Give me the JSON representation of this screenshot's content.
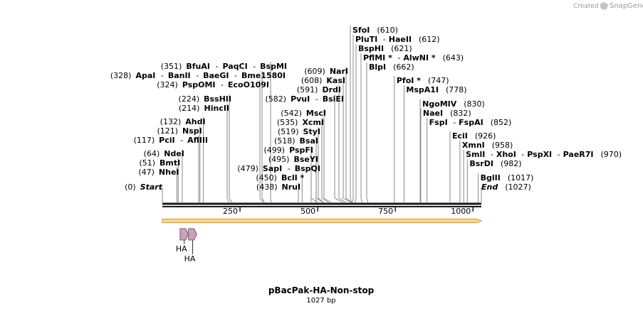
{
  "credit": {
    "prefix": "Created by",
    "brand": "SnapGene"
  },
  "plasmid": {
    "name": "pBacPak-HA-Non-stop",
    "length_label": "1027 bp",
    "length_bp": 1027
  },
  "axis": {
    "ticks": [
      {
        "value": 250,
        "label": "250"
      },
      {
        "value": 500,
        "label": "500"
      },
      {
        "value": 750,
        "label": "750"
      },
      {
        "value": 1000,
        "label": "1000"
      }
    ]
  },
  "feature_colors": {
    "backbone": "#1a1a1a",
    "orf_fill": "#f2d8a4",
    "orf_stroke": "#e2a33a",
    "tag_fill": "#c9a3b9",
    "tag_stroke": "#7f5a72",
    "leader_line": "#888888"
  },
  "features": [
    {
      "name": "HA",
      "start": 57,
      "end": 84
    },
    {
      "name": "HA",
      "start": 84,
      "end": 111
    }
  ],
  "sites": [
    {
      "site": 0,
      "pos": "(0)",
      "names": [
        {
          "t": "Start",
          "italic": true
        }
      ]
    },
    {
      "site": 47,
      "pos": "(47)",
      "names": [
        {
          "t": "NheI"
        }
      ]
    },
    {
      "site": 51,
      "pos": "(51)",
      "names": [
        {
          "t": "BmtI"
        }
      ]
    },
    {
      "site": 64,
      "pos": "(64)",
      "names": [
        {
          "t": "NdeI"
        }
      ]
    },
    {
      "site": 117,
      "pos": "(117)",
      "names": [
        {
          "t": "PciI"
        },
        {
          "t": "AflIII"
        }
      ]
    },
    {
      "site": 121,
      "pos": "(121)",
      "names": [
        {
          "t": "NspI"
        }
      ]
    },
    {
      "site": 132,
      "pos": "(132)",
      "names": [
        {
          "t": "AhdI"
        }
      ]
    },
    {
      "site": 214,
      "pos": "(214)",
      "names": [
        {
          "t": "HincII"
        }
      ]
    },
    {
      "site": 224,
      "pos": "(224)",
      "names": [
        {
          "t": "BssHII"
        }
      ]
    },
    {
      "site": 324,
      "pos": "(324)",
      "names": [
        {
          "t": "PspOMI"
        },
        {
          "t": "EcoO109I"
        }
      ]
    },
    {
      "site": 328,
      "pos": "(328)",
      "names": [
        {
          "t": "ApaI"
        },
        {
          "t": "BanII"
        },
        {
          "t": "BaeGI"
        },
        {
          "t": "Bme1580I"
        }
      ]
    },
    {
      "site": 351,
      "pos": "(351)",
      "names": [
        {
          "t": "BfuAI"
        },
        {
          "t": "PaqCI"
        },
        {
          "t": "BspMI"
        }
      ]
    },
    {
      "site": 438,
      "pos": "(438)",
      "names": [
        {
          "t": "NruI"
        }
      ]
    },
    {
      "site": 450,
      "pos": "(450)",
      "names": [
        {
          "t": "BclI *"
        }
      ]
    },
    {
      "site": 479,
      "pos": "(479)",
      "names": [
        {
          "t": "SapI"
        },
        {
          "t": "BspQI"
        }
      ]
    },
    {
      "site": 495,
      "pos": "(495)",
      "names": [
        {
          "t": "BseYI"
        }
      ]
    },
    {
      "site": 499,
      "pos": "(499)",
      "names": [
        {
          "t": "PspFI"
        }
      ]
    },
    {
      "site": 518,
      "pos": "(518)",
      "names": [
        {
          "t": "BsaI"
        }
      ]
    },
    {
      "site": 519,
      "pos": "(519)",
      "names": [
        {
          "t": "StyI"
        }
      ]
    },
    {
      "site": 535,
      "pos": "(535)",
      "names": [
        {
          "t": "XcmI"
        }
      ]
    },
    {
      "site": 542,
      "pos": "(542)",
      "names": [
        {
          "t": "MscI"
        }
      ]
    },
    {
      "site": 582,
      "pos": "(582)",
      "names": [
        {
          "t": "PvuI"
        },
        {
          "t": "BsiEI"
        }
      ]
    },
    {
      "site": 591,
      "pos": "(591)",
      "names": [
        {
          "t": "DrdI"
        }
      ]
    },
    {
      "site": 608,
      "pos": "(608)",
      "names": [
        {
          "t": "KasI"
        }
      ]
    },
    {
      "site": 609,
      "pos": "(609)",
      "names": [
        {
          "t": "NarI"
        }
      ]
    },
    {
      "site": 610,
      "pos": "(610)",
      "names": [
        {
          "t": "SfoI"
        }
      ],
      "pos_after": true
    },
    {
      "site": 612,
      "pos": "(612)",
      "names": [
        {
          "t": "PluTI"
        },
        {
          "t": "HaeII"
        }
      ],
      "pos_after": true
    },
    {
      "site": 621,
      "pos": "(621)",
      "names": [
        {
          "t": "BspHI"
        }
      ],
      "pos_after": true
    },
    {
      "site": 643,
      "pos": "(643)",
      "names": [
        {
          "t": "PflMI *"
        },
        {
          "t": "AlwNI *"
        }
      ],
      "pos_after": true
    },
    {
      "site": 662,
      "pos": "(662)",
      "names": [
        {
          "t": "BlpI"
        }
      ],
      "pos_after": true
    },
    {
      "site": 747,
      "pos": "(747)",
      "names": [
        {
          "t": "PfoI *"
        }
      ],
      "pos_after": true
    },
    {
      "site": 778,
      "pos": "(778)",
      "names": [
        {
          "t": "MspA1I"
        }
      ],
      "pos_after": true
    },
    {
      "site": 830,
      "pos": "(830)",
      "names": [
        {
          "t": "NgoMIV"
        }
      ],
      "pos_after": true
    },
    {
      "site": 832,
      "pos": "(832)",
      "names": [
        {
          "t": "NaeI"
        }
      ],
      "pos_after": true
    },
    {
      "site": 852,
      "pos": "(852)",
      "names": [
        {
          "t": "FspI"
        },
        {
          "t": "FspAI"
        }
      ],
      "pos_after": true
    },
    {
      "site": 926,
      "pos": "(926)",
      "names": [
        {
          "t": "EciI"
        }
      ],
      "pos_after": true
    },
    {
      "site": 958,
      "pos": "(958)",
      "names": [
        {
          "t": "XmnI"
        }
      ],
      "pos_after": true
    },
    {
      "site": 970,
      "pos": "(970)",
      "names": [
        {
          "t": "SmlI"
        },
        {
          "t": "XhoI"
        },
        {
          "t": "PspXI"
        },
        {
          "t": "PaeR7I"
        }
      ],
      "pos_after": true
    },
    {
      "site": 982,
      "pos": "(982)",
      "names": [
        {
          "t": "BsrDI"
        }
      ],
      "pos_after": true
    },
    {
      "site": 1017,
      "pos": "(1017)",
      "names": [
        {
          "t": "BglII"
        }
      ],
      "pos_after": true
    },
    {
      "site": 1027,
      "pos": "(1027)",
      "names": [
        {
          "t": "End",
          "italic": true
        }
      ],
      "pos_after": true
    }
  ]
}
